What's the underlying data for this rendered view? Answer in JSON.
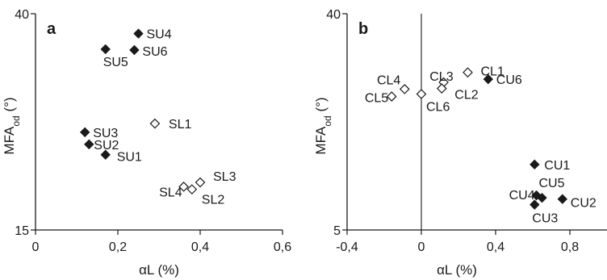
{
  "chart_data": [
    {
      "type": "scatter",
      "panel_label": "a",
      "xlabel": "αL (%)",
      "ylabel": "MFAod (°)",
      "xlim": [
        0,
        0.6
      ],
      "ylim": [
        15,
        40
      ],
      "xticks": [
        {
          "value": 0,
          "label": "0"
        },
        {
          "value": 0.2,
          "label": "0,2"
        },
        {
          "value": 0.4,
          "label": "0,4"
        },
        {
          "value": 0.6,
          "label": "0,6"
        }
      ],
      "yticks": [
        {
          "value": 15,
          "label": "15"
        },
        {
          "value": 40,
          "label": "40"
        }
      ],
      "grid": false,
      "points": [
        {
          "label": "SU4",
          "x": 0.25,
          "y": 37.7,
          "marker": "filled-diamond"
        },
        {
          "label": "SU6",
          "x": 0.24,
          "y": 35.8,
          "marker": "filled-diamond"
        },
        {
          "label": "SU5",
          "x": 0.17,
          "y": 35.9,
          "marker": "filled-diamond"
        },
        {
          "label": "SL1",
          "x": 0.29,
          "y": 27.3,
          "marker": "open-diamond"
        },
        {
          "label": "SU3",
          "x": 0.12,
          "y": 26.3,
          "marker": "filled-diamond"
        },
        {
          "label": "SU2",
          "x": 0.13,
          "y": 24.9,
          "marker": "filled-diamond"
        },
        {
          "label": "SU1",
          "x": 0.17,
          "y": 23.7,
          "marker": "filled-diamond"
        },
        {
          "label": "SL3",
          "x": 0.4,
          "y": 20.5,
          "marker": "open-diamond"
        },
        {
          "label": "SL4",
          "x": 0.36,
          "y": 20.0,
          "marker": "open-diamond"
        },
        {
          "label": "SL2",
          "x": 0.38,
          "y": 19.7,
          "marker": "open-diamond"
        }
      ]
    },
    {
      "type": "scatter",
      "panel_label": "b",
      "xlabel": "αL (%)",
      "ylabel": "MFAod (°)",
      "xlim": [
        -0.4,
        1.0
      ],
      "ylim": [
        5,
        40
      ],
      "xticks": [
        {
          "value": -0.4,
          "label": "-0,4"
        },
        {
          "value": 0,
          "label": "0"
        },
        {
          "value": 0.4,
          "label": "0,4"
        },
        {
          "value": 0.8,
          "label": "0,8"
        }
      ],
      "yticks": [
        {
          "value": 5,
          "label": "5"
        },
        {
          "value": 40,
          "label": "40"
        }
      ],
      "grid": false,
      "reference_line_x": 0,
      "points": [
        {
          "label": "CL1",
          "x": 0.25,
          "y": 30.5,
          "marker": "open-diamond"
        },
        {
          "label": "CL3",
          "x": 0.12,
          "y": 28.9,
          "marker": "open-diamond"
        },
        {
          "label": "CL6",
          "x": 0.0,
          "y": 27.0,
          "marker": "open-diamond"
        },
        {
          "label": "CL2",
          "x": 0.11,
          "y": 27.9,
          "marker": "open-diamond"
        },
        {
          "label": "CL4",
          "x": -0.09,
          "y": 27.8,
          "marker": "open-diamond"
        },
        {
          "label": "CL5",
          "x": -0.16,
          "y": 26.6,
          "marker": "open-diamond"
        },
        {
          "label": "CU6",
          "x": 0.36,
          "y": 29.4,
          "marker": "filled-diamond"
        },
        {
          "label": "CU1",
          "x": 0.61,
          "y": 15.6,
          "marker": "filled-diamond"
        },
        {
          "label": "CU4",
          "x": 0.62,
          "y": 10.6,
          "marker": "filled-diamond"
        },
        {
          "label": "CU5",
          "x": 0.65,
          "y": 10.2,
          "marker": "filled-diamond"
        },
        {
          "label": "CU2",
          "x": 0.76,
          "y": 10.0,
          "marker": "filled-diamond"
        },
        {
          "label": "CU3",
          "x": 0.61,
          "y": 9.1,
          "marker": "filled-diamond"
        }
      ]
    }
  ]
}
